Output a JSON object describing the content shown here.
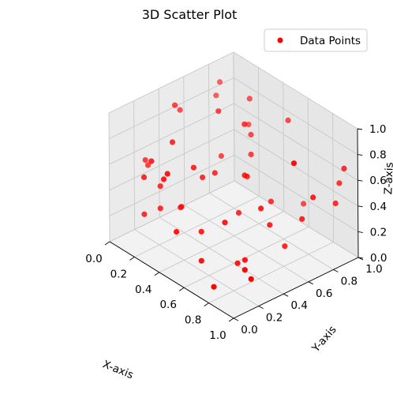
{
  "chart_data": {
    "type": "scatter",
    "projection": "3d",
    "title": "3D Scatter Plot",
    "xlabel": "X-axis",
    "ylabel": "Y-axis",
    "zlabel": "Z-axis",
    "xlim": [
      0,
      1
    ],
    "ylim": [
      0,
      1
    ],
    "zlim": [
      0,
      1
    ],
    "xticks": [
      "0.0",
      "0.2",
      "0.4",
      "0.6",
      "0.8",
      "1.0"
    ],
    "yticks": [
      "0.0",
      "0.2",
      "0.4",
      "0.6",
      "0.8",
      "1.0"
    ],
    "zticks": [
      "0.0",
      "0.2",
      "0.4",
      "0.6",
      "0.8",
      "1.0"
    ],
    "grid": true,
    "legend_position": "top-right",
    "series": [
      {
        "name": "Data Points",
        "color": "#ff0000",
        "points": [
          [
            0.56,
            0.18,
            0.1
          ],
          [
            0.17,
            0.11,
            0.55
          ],
          [
            0.15,
            0.38,
            0.97
          ],
          [
            0.32,
            0.56,
            0.94
          ],
          [
            0.45,
            0.69,
            0.62
          ],
          [
            0.42,
            0.12,
            0.27
          ],
          [
            0.29,
            0.61,
            0.55
          ],
          [
            0.09,
            0.48,
            0.85
          ],
          [
            0.15,
            0.71,
            0.89
          ],
          [
            0.48,
            0.61,
            0.91
          ],
          [
            0.04,
            0.25,
            0.54
          ],
          [
            0.63,
            0.93,
            0.23
          ],
          [
            0.38,
            0.3,
            0.66
          ],
          [
            0.73,
            0.56,
            0.3
          ],
          [
            0.41,
            0.44,
            0.57
          ],
          [
            0.83,
            0.72,
            0.33
          ],
          [
            0.8,
            0.29,
            0.12
          ],
          [
            0.71,
            0.51,
            0.44
          ],
          [
            0.65,
            0.38,
            0.04
          ],
          [
            0.71,
            0.13,
            0.01
          ],
          [
            0.76,
            0.65,
            0.11
          ],
          [
            0.87,
            0.27,
            0.1
          ],
          [
            0.03,
            0.28,
            0.48
          ],
          [
            0.34,
            0.1,
            0.64
          ],
          [
            0.15,
            0.74,
            0.98
          ],
          [
            0.28,
            0.84,
            0.68
          ],
          [
            0.56,
            0.88,
            0.86
          ],
          [
            0.37,
            0.1,
            0.7
          ],
          [
            0.37,
            0.38,
            0.54
          ],
          [
            0.4,
            0.74,
            0.72
          ],
          [
            0.22,
            0.19,
            0.3
          ],
          [
            0.18,
            0.23,
            0.43
          ],
          [
            0.59,
            0.5,
            0.63
          ],
          [
            0.6,
            0.33,
            0.35
          ],
          [
            0.57,
            0.54,
            0.59
          ],
          [
            0.47,
            0.27,
            0.23
          ],
          [
            0.96,
            0.93,
            0.7
          ],
          [
            0.7,
            0.39,
            0.09
          ],
          [
            0.34,
            0.79,
            0.94
          ],
          [
            0.96,
            0.53,
            0.93
          ],
          [
            0.88,
            0.97,
            0.52
          ],
          [
            0.9,
            0.74,
            0.53
          ],
          [
            0.2,
            0.37,
            0.21
          ],
          [
            0.33,
            0.25,
            0.35
          ],
          [
            0.14,
            0.14,
            0.23
          ],
          [
            0.23,
            0.11,
            0.71
          ],
          [
            0.27,
            0.24,
            0.82
          ],
          [
            0.62,
            0.68,
            0.36
          ],
          [
            0.55,
            0.49,
            0.32
          ],
          [
            0.92,
            0.9,
            0.42
          ]
        ]
      }
    ]
  }
}
